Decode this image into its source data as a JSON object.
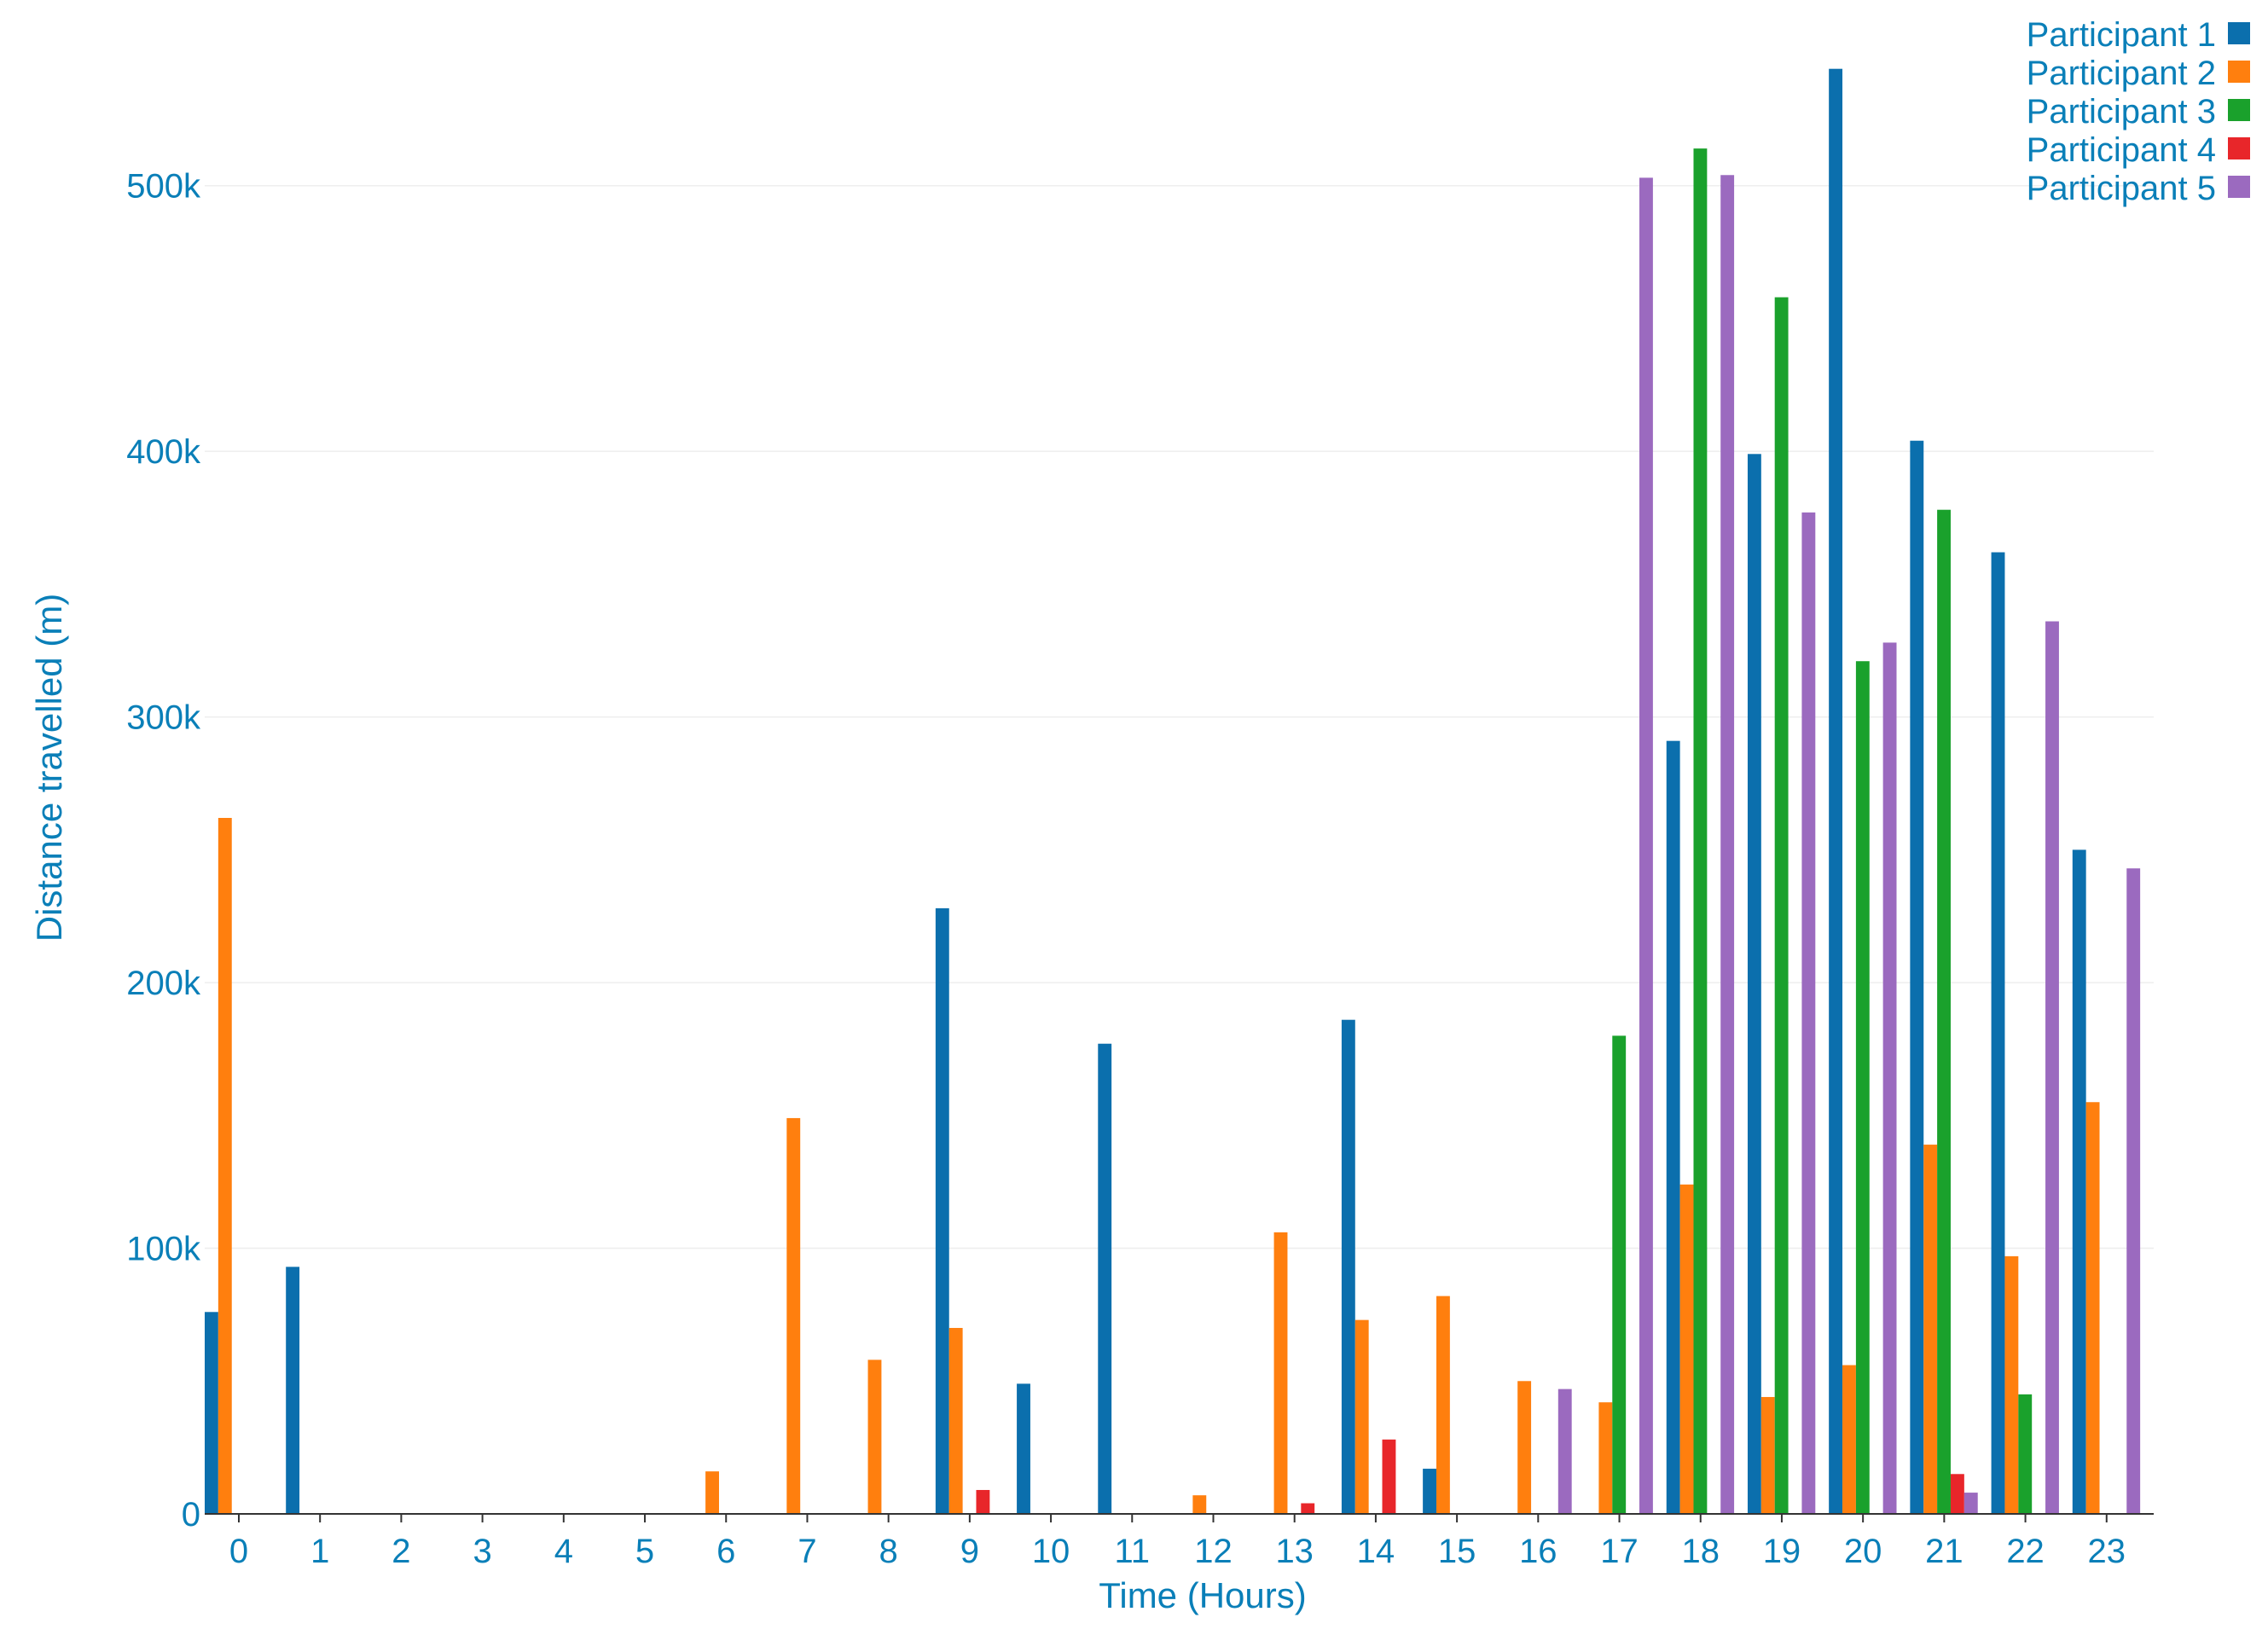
{
  "chart_data": {
    "type": "bar",
    "xlabel": "Time (Hours)",
    "ylabel": "Distance travelled (m)",
    "ylim": [
      0,
      550000
    ],
    "yticks": [
      0,
      100000,
      200000,
      300000,
      400000,
      500000
    ],
    "ytick_labels": [
      "0",
      "100k",
      "200k",
      "300k",
      "400k",
      "500k"
    ],
    "grid": true,
    "legend_position": "top-right",
    "categories": [
      "0",
      "1",
      "2",
      "3",
      "4",
      "5",
      "6",
      "7",
      "8",
      "9",
      "10",
      "11",
      "12",
      "13",
      "14",
      "15",
      "16",
      "17",
      "18",
      "19",
      "20",
      "21",
      "22",
      "23"
    ],
    "series": [
      {
        "name": "Participant 1",
        "color": "#0b6fad",
        "values": [
          76000,
          93000,
          0,
          0,
          0,
          0,
          0,
          0,
          0,
          228000,
          49000,
          177000,
          0,
          0,
          186000,
          17000,
          0,
          0,
          291000,
          399000,
          544000,
          404000,
          362000,
          250000
        ]
      },
      {
        "name": "Participant 2",
        "color": "#ff7f0e",
        "values": [
          262000,
          0,
          0,
          0,
          0,
          0,
          16000,
          149000,
          58000,
          70000,
          0,
          0,
          7000,
          106000,
          73000,
          82000,
          50000,
          42000,
          124000,
          44000,
          56000,
          139000,
          97000,
          155000
        ]
      },
      {
        "name": "Participant 3",
        "color": "#1aa12c",
        "values": [
          0,
          0,
          0,
          0,
          0,
          0,
          0,
          0,
          0,
          0,
          0,
          0,
          0,
          0,
          0,
          0,
          0,
          180000,
          514000,
          458000,
          321000,
          378000,
          45000,
          0
        ]
      },
      {
        "name": "Participant 4",
        "color": "#e8262a",
        "values": [
          0,
          0,
          0,
          0,
          0,
          0,
          0,
          0,
          0,
          9000,
          0,
          0,
          0,
          4000,
          28000,
          0,
          0,
          0,
          0,
          0,
          0,
          15000,
          0,
          0
        ]
      },
      {
        "name": "Participant 5",
        "color": "#9b6abf",
        "values": [
          0,
          0,
          0,
          0,
          0,
          0,
          0,
          0,
          0,
          0,
          0,
          0,
          0,
          0,
          0,
          0,
          47000,
          503000,
          504000,
          377000,
          328000,
          8000,
          336000,
          243000
        ]
      }
    ]
  }
}
